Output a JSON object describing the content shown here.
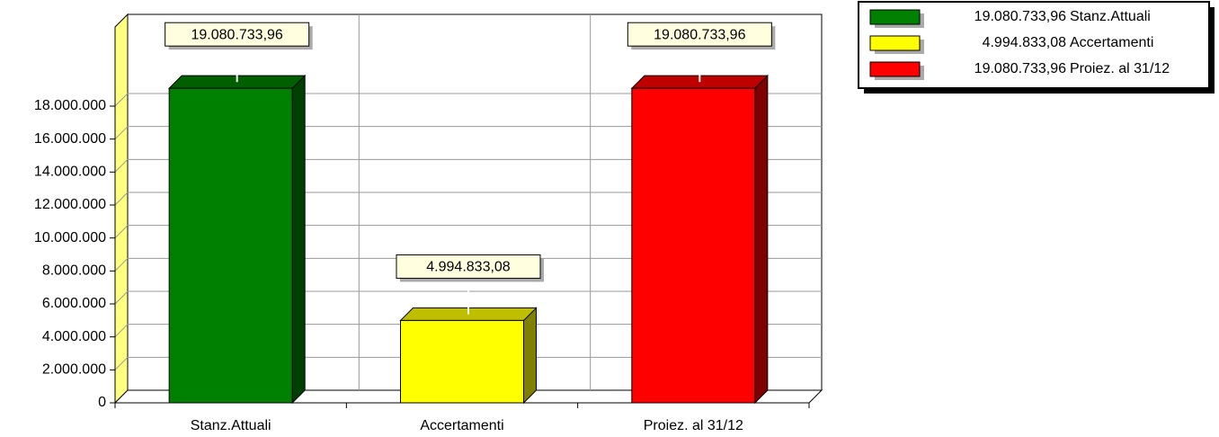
{
  "chart_data": {
    "type": "bar",
    "categories": [
      "Stanz.Attuali",
      "Accertamenti",
      "Proiez. al 31/12"
    ],
    "values": [
      19080733.96,
      4994833.08,
      19080733.96
    ],
    "value_labels": [
      "19.080.733,96",
      "4.994.833,08",
      "19.080.733,96"
    ],
    "colors": [
      "#008000",
      "#ffff00",
      "#ff0000"
    ],
    "ylim": [
      0,
      22800000
    ],
    "yticks": [
      0,
      {
        "value": 2000000,
        "label": "2.000.000"
      },
      {
        "value": 4000000,
        "label": "4.000.000"
      },
      {
        "value": 6000000,
        "label": "6.000.000"
      },
      {
        "value": 8000000,
        "label": "8.000.000"
      },
      {
        "value": 10000000,
        "label": "10.000.000"
      },
      {
        "value": 12000000,
        "label": "12.000.000"
      },
      {
        "value": 14000000,
        "label": "14.000.000"
      },
      {
        "value": 16000000,
        "label": "16.000.000"
      },
      {
        "value": 18000000,
        "label": "18.000.000"
      }
    ],
    "grid": true,
    "legend": "top-right"
  }
}
